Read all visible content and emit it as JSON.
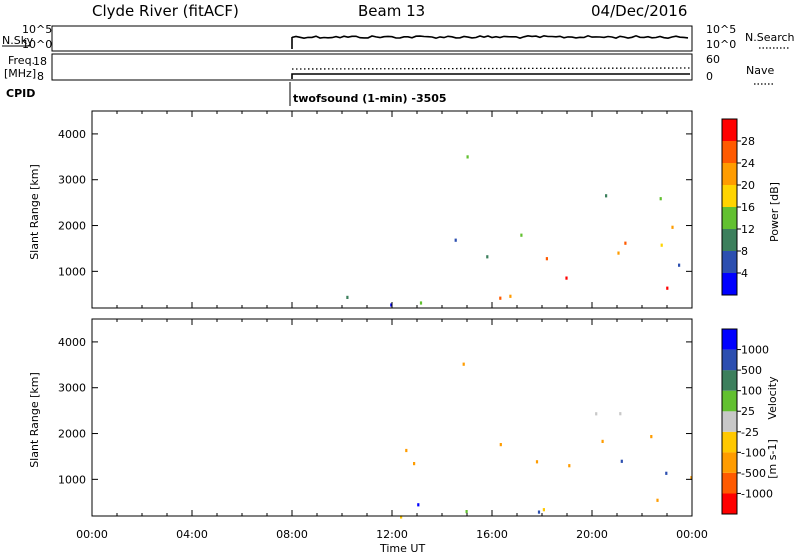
{
  "header": {
    "station": "Clyde River (fitACF)",
    "beam": "Beam 13",
    "date": "04/Dec/2016"
  },
  "top_panels": {
    "nsky_label": "N.Sky",
    "nsky_ticks": [
      "10^5",
      "10^0"
    ],
    "nsearch_label": "N.Search",
    "nsearch_ticks": [
      "10^5",
      "10^0"
    ],
    "freq_label_line1": "Freq.",
    "freq_label_line2": "[MHz]",
    "freq_ticks": [
      "18",
      "8"
    ],
    "nave_label": "Nave",
    "nave_ticks": [
      "60",
      "0"
    ],
    "cpid_label": "CPID",
    "cpid_text": "twofsound (1-min) -3505"
  },
  "chart_data": [
    {
      "type": "heatmap",
      "name": "power",
      "ylabel": "Slant Range [km]",
      "y_ticks": [
        "4000",
        "3000",
        "2000",
        "1000"
      ],
      "ylim": [
        200,
        4500
      ],
      "xlim_hours": [
        0,
        24
      ],
      "colorbar_label": "Power [dB]",
      "colorbar_ticks": [
        "28",
        "24",
        "20",
        "16",
        "12",
        "8",
        "4"
      ],
      "colorbar_colors": [
        "#0000ff",
        "#2c4fb0",
        "#3c7f5c",
        "#62c030",
        "#ffd400",
        "#ff9c00",
        "#ff5a00",
        "#ff0000"
      ],
      "data_start_hour": 8.0
    },
    {
      "type": "heatmap",
      "name": "velocity",
      "ylabel": "Slant Range [km]",
      "y_ticks": [
        "4000",
        "3000",
        "2000",
        "1000"
      ],
      "ylim": [
        200,
        4500
      ],
      "xlim_hours": [
        0,
        24
      ],
      "colorbar_label": "Velocity",
      "colorbar_unit": "[m s-1]",
      "colorbar_ticks": [
        "1000",
        "500",
        "100",
        "25",
        "-25",
        "-100",
        "-500",
        "-1000"
      ],
      "colorbar_colors": [
        "#ff0000",
        "#ff5a00",
        "#ff9c00",
        "#ffc800",
        "#c8c8c8",
        "#62c030",
        "#3c7f5c",
        "#2c4fb0",
        "#0000ff"
      ],
      "data_start_hour": 8.0
    }
  ],
  "x_axis": {
    "ticks": [
      "00:00",
      "04:00",
      "08:00",
      "12:00",
      "16:00",
      "20:00",
      "00:00"
    ],
    "label": "Time UT"
  }
}
